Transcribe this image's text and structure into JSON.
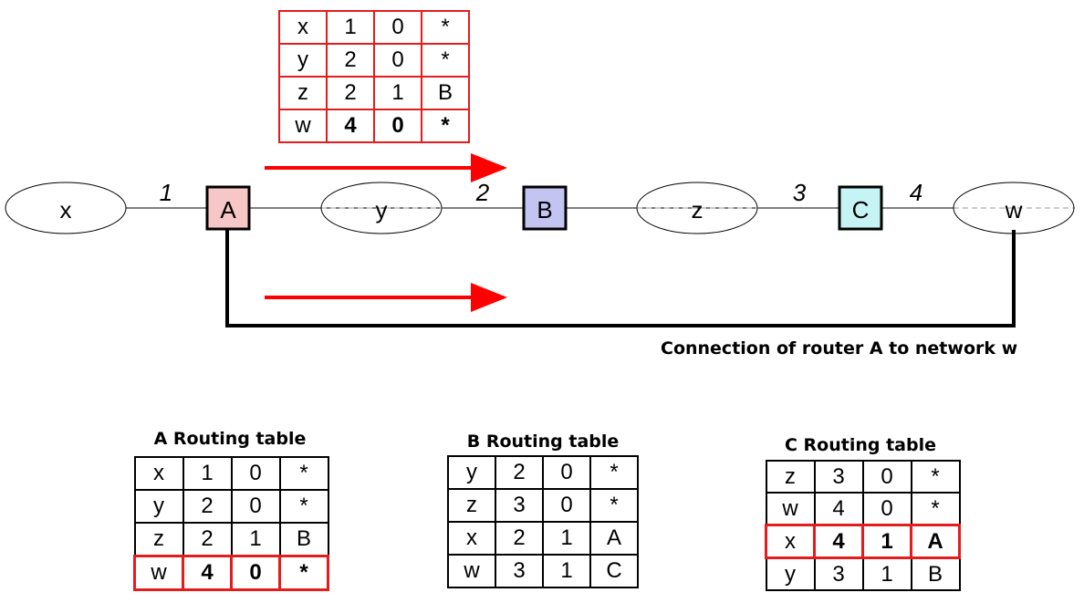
{
  "networks": {
    "x": "x",
    "y": "y",
    "z": "z",
    "w": "w"
  },
  "routers": {
    "A": {
      "label": "A",
      "fill": "#f7c6c6"
    },
    "B": {
      "label": "B",
      "fill": "#c4c4f2"
    },
    "C": {
      "label": "C",
      "fill": "#c6f4f4"
    }
  },
  "link_costs": {
    "x_A": "1",
    "y_B": "2",
    "z_C": "3",
    "C_w": "4"
  },
  "connection_caption": "Connection of router A to network w",
  "arrow_color": "#ff0000",
  "highlight_color": "#e51c1c",
  "advertised_table": {
    "rows": [
      [
        "x",
        "1",
        "0",
        "*"
      ],
      [
        "y",
        "2",
        "0",
        "*"
      ],
      [
        "z",
        "2",
        "1",
        "B"
      ],
      [
        "w",
        "4",
        "0",
        "*"
      ]
    ]
  },
  "tables": {
    "A": {
      "title": "A Routing table",
      "rows": [
        [
          "x",
          "1",
          "0",
          "*"
        ],
        [
          "y",
          "2",
          "0",
          "*"
        ],
        [
          "z",
          "2",
          "1",
          "B"
        ],
        [
          "w",
          "4",
          "0",
          "*"
        ]
      ]
    },
    "B": {
      "title": "B Routing table",
      "rows": [
        [
          "y",
          "2",
          "0",
          "*"
        ],
        [
          "z",
          "3",
          "0",
          "*"
        ],
        [
          "x",
          "2",
          "1",
          "A"
        ],
        [
          "w",
          "3",
          "1",
          "C"
        ]
      ]
    },
    "C": {
      "title": "C Routing table",
      "rows": [
        [
          "z",
          "3",
          "0",
          "*"
        ],
        [
          "w",
          "4",
          "0",
          "*"
        ],
        [
          "x",
          "4",
          "1",
          "A"
        ],
        [
          "y",
          "3",
          "1",
          "B"
        ]
      ]
    }
  }
}
